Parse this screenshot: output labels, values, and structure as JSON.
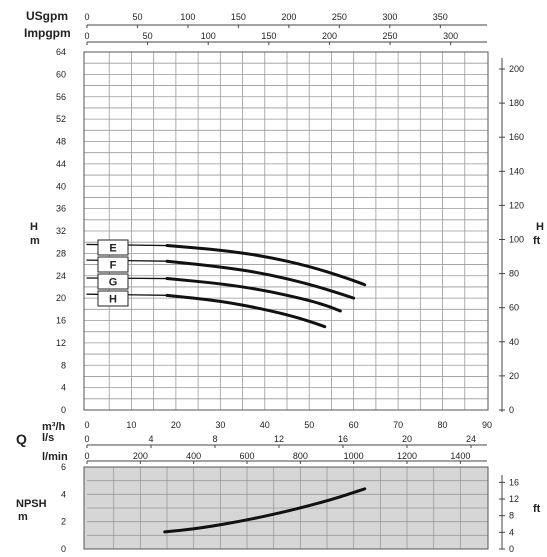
{
  "header": {
    "usgpm_label": "USgpm",
    "impgpm_label": "Impgpm",
    "usgpm_ticks": [
      "0",
      "50",
      "100",
      "150",
      "200",
      "250",
      "300",
      "350"
    ],
    "impgpm_ticks": [
      "0",
      "50",
      "100",
      "150",
      "200",
      "250",
      "300"
    ]
  },
  "chart_data": [
    {
      "type": "line",
      "title": "",
      "ylabel": "H",
      "ylabel_unit": "m",
      "y2label": "H",
      "y2label_unit": "ft",
      "ylim": [
        0,
        64
      ],
      "y_ticks": [
        "0",
        "4",
        "8",
        "12",
        "16",
        "20",
        "24",
        "28",
        "32",
        "36",
        "40",
        "44",
        "48",
        "52",
        "56",
        "60",
        "64"
      ],
      "y2lim": [
        0,
        209.97
      ],
      "y2_ticks": [
        "0",
        "20",
        "40",
        "60",
        "80",
        "100",
        "120",
        "140",
        "160",
        "180",
        "200"
      ],
      "xlim": [
        0,
        90
      ],
      "x_unit": "m³/h",
      "x_ticks": [
        "0",
        "10",
        "20",
        "30",
        "40",
        "50",
        "60",
        "70",
        "80",
        "90"
      ],
      "grid": true,
      "series": [
        {
          "name": "E",
          "x": [
            0,
            18,
            30,
            40,
            50,
            58,
            62.5
          ],
          "y": [
            29.6,
            29.4,
            28.6,
            27.5,
            25.7,
            23.7,
            22.4
          ]
        },
        {
          "name": "F",
          "x": [
            0,
            18,
            30,
            40,
            50,
            56.5,
            60
          ],
          "y": [
            26.8,
            26.6,
            25.6,
            24.4,
            22.5,
            20.9,
            20.0
          ]
        },
        {
          "name": "G",
          "x": [
            0,
            18,
            30,
            40,
            50,
            54.5,
            57
          ],
          "y": [
            23.6,
            23.5,
            22.6,
            21.4,
            19.6,
            18.5,
            17.7
          ]
        },
        {
          "name": "H",
          "x": [
            0,
            18,
            30,
            40,
            47,
            51,
            53.5
          ],
          "y": [
            20.7,
            20.5,
            19.5,
            18.0,
            16.6,
            15.6,
            14.9
          ]
        }
      ]
    },
    {
      "type": "line",
      "title": "",
      "ylabel": "NPSH",
      "ylabel_unit": "m",
      "y2label": "ft",
      "ylim": [
        0,
        6
      ],
      "y_ticks": [
        "0",
        "2",
        "4",
        "6"
      ],
      "y2lim": [
        0,
        19.69
      ],
      "y2_ticks": [
        "0",
        "4",
        "8",
        "12",
        "16"
      ],
      "xlim": [
        0,
        90
      ],
      "grid": true,
      "series": [
        {
          "x": [
            17.5,
            25,
            35,
            45,
            55,
            62.5
          ],
          "y": [
            1.25,
            1.5,
            2.05,
            2.75,
            3.6,
            4.4
          ]
        }
      ]
    }
  ],
  "flow_axes": {
    "q_label": "Q",
    "m3h_label": "m³/h",
    "ls_label": "l/s",
    "ls_ticks": [
      "0",
      "4",
      "8",
      "12",
      "16",
      "20",
      "24"
    ],
    "lmin_label": "l/min",
    "lmin_ticks": [
      "0",
      "200",
      "400",
      "600",
      "800",
      "1000",
      "1200",
      "1400"
    ]
  },
  "colors": {
    "npsh_background": "#d6d6d6",
    "curve": "#111111",
    "grid": "#9a9a9a"
  }
}
